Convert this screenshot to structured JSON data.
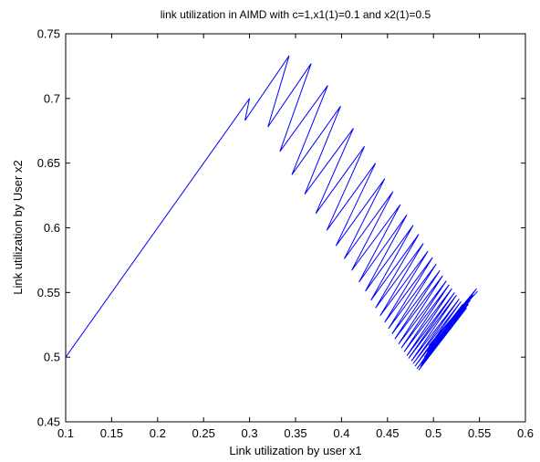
{
  "chart_data": {
    "type": "line",
    "title": "link utilization in AIMD with c=1,x1(1)=0.1 and x2(1)=0.5",
    "xlabel": "Link utilization by user x1",
    "ylabel": "Link utilization by User x2",
    "xlim": [
      0.1,
      0.6
    ],
    "ylim": [
      0.45,
      0.75
    ],
    "xticks": [
      0.1,
      0.15,
      0.2,
      0.25,
      0.3,
      0.35,
      0.4,
      0.45,
      0.5,
      0.55,
      0.6
    ],
    "yticks": [
      0.45,
      0.5,
      0.55,
      0.6,
      0.65,
      0.7,
      0.75
    ],
    "xtick_labels": [
      "0.1",
      "0.15",
      "0.2",
      "0.25",
      "0.3",
      "0.35",
      "0.4",
      "0.45",
      "0.5",
      "0.55",
      "0.6"
    ],
    "ytick_labels": [
      "0.45",
      "0.5",
      "0.55",
      "0.6",
      "0.65",
      "0.7",
      "0.75"
    ],
    "grid": false,
    "line_color": "#0000ff",
    "series": [
      {
        "values": [
          [
            0.1,
            0.5
          ],
          [
            0.3,
            0.7
          ],
          [
            0.295,
            0.683
          ],
          [
            0.343,
            0.733
          ],
          [
            0.32,
            0.678
          ],
          [
            0.367,
            0.727
          ],
          [
            0.333,
            0.659
          ],
          [
            0.385,
            0.71
          ],
          [
            0.346,
            0.641
          ],
          [
            0.399,
            0.694
          ],
          [
            0.36,
            0.626
          ],
          [
            0.413,
            0.677
          ],
          [
            0.372,
            0.611
          ],
          [
            0.425,
            0.663
          ],
          [
            0.384,
            0.598
          ],
          [
            0.437,
            0.65
          ],
          [
            0.394,
            0.586
          ],
          [
            0.447,
            0.638
          ],
          [
            0.403,
            0.576
          ],
          [
            0.456,
            0.628
          ],
          [
            0.411,
            0.567
          ],
          [
            0.464,
            0.618
          ],
          [
            0.419,
            0.558
          ],
          [
            0.471,
            0.61
          ],
          [
            0.426,
            0.551
          ],
          [
            0.478,
            0.602
          ],
          [
            0.432,
            0.544
          ],
          [
            0.484,
            0.595
          ],
          [
            0.437,
            0.538
          ],
          [
            0.489,
            0.588
          ],
          [
            0.442,
            0.532
          ],
          [
            0.494,
            0.582
          ],
          [
            0.447,
            0.527
          ],
          [
            0.499,
            0.577
          ],
          [
            0.451,
            0.522
          ],
          [
            0.503,
            0.572
          ],
          [
            0.455,
            0.518
          ],
          [
            0.507,
            0.567
          ],
          [
            0.458,
            0.514
          ],
          [
            0.51,
            0.563
          ],
          [
            0.462,
            0.51
          ],
          [
            0.514,
            0.559
          ],
          [
            0.465,
            0.507
          ],
          [
            0.517,
            0.556
          ],
          [
            0.468,
            0.504
          ],
          [
            0.52,
            0.553
          ],
          [
            0.471,
            0.501
          ],
          [
            0.523,
            0.55
          ],
          [
            0.473,
            0.499
          ],
          [
            0.525,
            0.548
          ],
          [
            0.476,
            0.497
          ],
          [
            0.528,
            0.545
          ],
          [
            0.478,
            0.495
          ],
          [
            0.53,
            0.543
          ],
          [
            0.48,
            0.493
          ],
          [
            0.532,
            0.541
          ],
          [
            0.482,
            0.491
          ],
          [
            0.534,
            0.54
          ],
          [
            0.484,
            0.49
          ],
          [
            0.536,
            0.538
          ],
          [
            0.486,
            0.493
          ],
          [
            0.538,
            0.541
          ],
          [
            0.487,
            0.495
          ],
          [
            0.54,
            0.544
          ],
          [
            0.489,
            0.497
          ],
          [
            0.541,
            0.546
          ],
          [
            0.49,
            0.5
          ],
          [
            0.543,
            0.548
          ],
          [
            0.492,
            0.502
          ],
          [
            0.544,
            0.55
          ],
          [
            0.493,
            0.504
          ],
          [
            0.546,
            0.552
          ],
          [
            0.494,
            0.507
          ],
          [
            0.547,
            0.553
          ],
          [
            0.495,
            0.509
          ],
          [
            0.548,
            0.551
          ]
        ]
      }
    ]
  }
}
